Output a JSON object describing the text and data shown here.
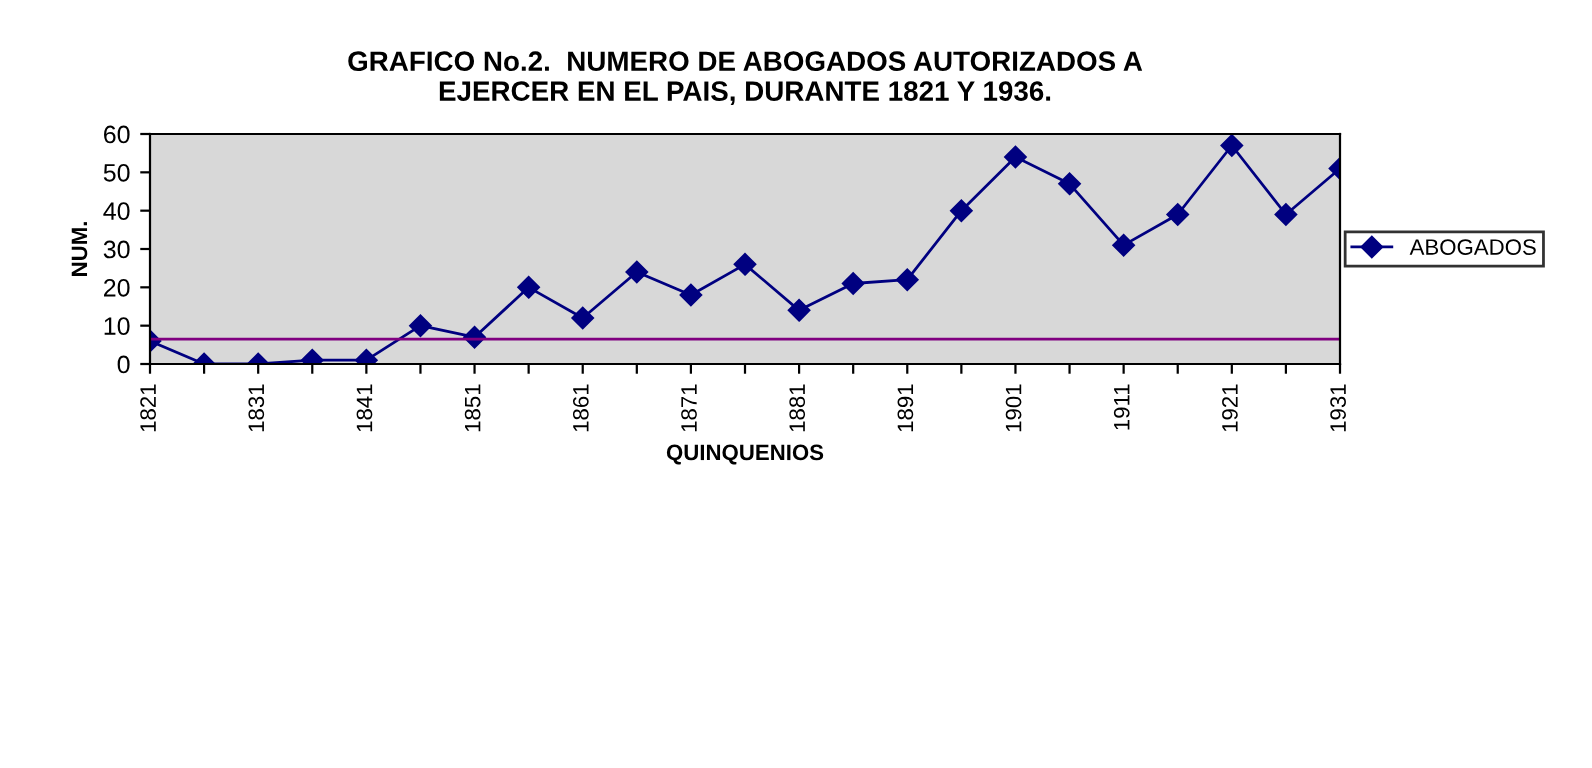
{
  "chart_data": {
    "type": "line",
    "title": "GRAFICO No.2.  NUMERO DE ABOGADOS AUTORIZADOS A\nEJERCER EN EL PAIS, DURANTE 1821 Y 1936.",
    "xlabel": "QUINQUENIOS",
    "ylabel": "NUM.",
    "categories": [
      "1821",
      null,
      "1831",
      null,
      "1841",
      null,
      "1851",
      null,
      "1861",
      null,
      "1871",
      null,
      "1881",
      null,
      "1891",
      null,
      "1901",
      null,
      "1911",
      null,
      "1921",
      null,
      "1931"
    ],
    "series": [
      {
        "name": "ABOGADOS",
        "color": "#000080",
        "values": [
          6,
          0,
          0,
          1,
          1,
          10,
          7,
          20,
          12,
          24,
          18,
          26,
          14,
          21,
          22,
          40,
          54,
          47,
          31,
          39,
          57,
          39,
          51
        ]
      }
    ],
    "ylim": [
      0,
      60
    ],
    "yticks": [
      0,
      10,
      20,
      30,
      40,
      50,
      60
    ],
    "marker": "diamond",
    "legend": "right",
    "ref_lines": [
      {
        "axis": "y",
        "value": 6.5,
        "color": "#800080"
      }
    ]
  }
}
